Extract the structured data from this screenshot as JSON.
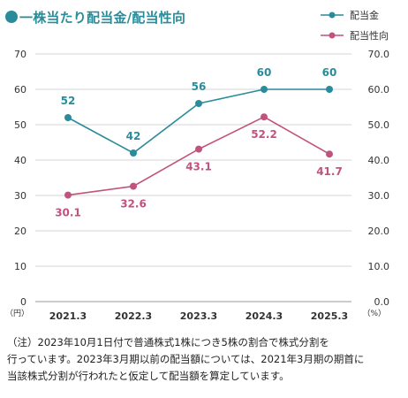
{
  "title": "一株当たり配当金/配当性向",
  "chart_data": {
    "type": "line",
    "categories": [
      "2021.3",
      "2022.3",
      "2023.3",
      "2024.3",
      "2025.3"
    ],
    "series": [
      {
        "name": "配当金",
        "axis": "left",
        "color": "#2a8c9a",
        "values": [
          52,
          42,
          56,
          60,
          60
        ],
        "labels": [
          "52",
          "42",
          "56",
          "60",
          "60"
        ],
        "label_position": "above"
      },
      {
        "name": "配当性向",
        "axis": "right",
        "color": "#c2527e",
        "values": [
          30.1,
          32.6,
          43.1,
          52.2,
          41.7
        ],
        "labels": [
          "30.1",
          "32.6",
          "43.1",
          "52.2",
          "41.7"
        ],
        "label_position": "below"
      }
    ],
    "left_axis": {
      "ylim": [
        0,
        70
      ],
      "ticks": [
        "0",
        "10",
        "20",
        "30",
        "40",
        "50",
        "60",
        "70"
      ],
      "unit": "（円）"
    },
    "right_axis": {
      "ylim": [
        0,
        70
      ],
      "ticks": [
        "0.0",
        "10.0",
        "20.0",
        "30.0",
        "40.0",
        "50.0",
        "60.0",
        "70.0"
      ],
      "unit": "（%）"
    },
    "grid": true,
    "legend_position": "top-right"
  },
  "note": [
    "（注）2023年10月1日付で普通株式1株につき5株の割合で株式分割を",
    "行っています。2023年3月期以前の配当額については、2021年3月期の期首に",
    "当該株式分割が行われたと仮定して配当額を算定しています。"
  ]
}
